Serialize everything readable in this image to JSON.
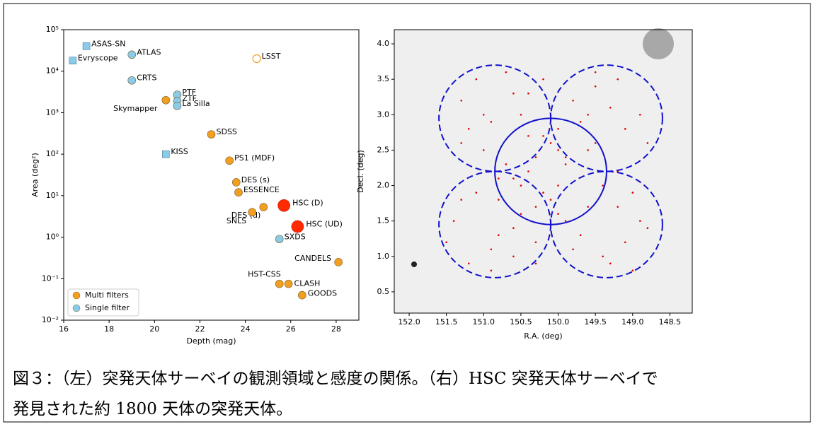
{
  "chart_data": [
    {
      "type": "scatter",
      "x_label": "Depth (mag)",
      "y_label": "Area (deg²)",
      "xlim": [
        16,
        29
      ],
      "xticks": [
        16,
        18,
        20,
        22,
        24,
        26,
        28
      ],
      "ylim": [
        0.01,
        100000
      ],
      "log_y": true,
      "yticks": [
        {
          "value": 0.01,
          "label": "10⁻²"
        },
        {
          "value": 0.1,
          "label": "10⁻¹"
        },
        {
          "value": 1,
          "label": "10⁰"
        },
        {
          "value": 10,
          "label": "10¹"
        },
        {
          "value": 100,
          "label": "10²"
        },
        {
          "value": 1000,
          "label": "10³"
        },
        {
          "value": 10000,
          "label": "10⁴"
        },
        {
          "value": 100000,
          "label": "10⁵"
        }
      ],
      "legend": [
        {
          "label": "Multi filters",
          "color": "#f29f1f"
        },
        {
          "label": "Single filter",
          "color": "#89cbe8"
        }
      ],
      "points": [
        {
          "name": "ASAS-SN",
          "x": 17,
          "y": 40000,
          "marker": "square",
          "color": "#89cbe8"
        },
        {
          "name": "Evryscope",
          "x": 16.4,
          "y": 18000,
          "marker": "square",
          "color": "#89cbe8"
        },
        {
          "name": "ATLAS",
          "x": 19,
          "y": 25000,
          "marker": "circle",
          "color": "#89cbe8"
        },
        {
          "name": "LSST",
          "x": 24.5,
          "y": 20000,
          "marker": "hollow",
          "color": "#f29f1f"
        },
        {
          "name": "CRTS",
          "x": 19,
          "y": 6000,
          "marker": "circle",
          "color": "#89cbe8"
        },
        {
          "name": "PTF",
          "x": 21,
          "y": 2700,
          "marker": "circle",
          "color": "#89cbe8"
        },
        {
          "name": "ZTF",
          "x": 21,
          "y": 1900,
          "marker": "circle",
          "color": "#89cbe8"
        },
        {
          "name": "La Silla",
          "x": 21,
          "y": 1450,
          "marker": "circle",
          "color": "#89cbe8"
        },
        {
          "name": "Skymapper",
          "x": 20.5,
          "y": 2000,
          "marker": "circle",
          "color": "#f29f1f"
        },
        {
          "name": "SDSS",
          "x": 22.5,
          "y": 300,
          "marker": "circle",
          "color": "#f29f1f"
        },
        {
          "name": "KISS",
          "x": 20.5,
          "y": 100,
          "marker": "square",
          "color": "#89cbe8"
        },
        {
          "name": "PS1 (MDF)",
          "x": 23.3,
          "y": 70,
          "marker": "circle",
          "color": "#f29f1f"
        },
        {
          "name": "DES (s)",
          "x": 23.6,
          "y": 21,
          "marker": "circle",
          "color": "#f29f1f"
        },
        {
          "name": "ESSENCE",
          "x": 23.7,
          "y": 12,
          "marker": "circle",
          "color": "#f29f1f"
        },
        {
          "name": "HSC (D)",
          "x": 25.7,
          "y": 5.8,
          "marker": "big",
          "color": "#ff2a00"
        },
        {
          "name": "DES (d)",
          "x": 24.8,
          "y": 5.3,
          "marker": "circle",
          "color": "#f29f1f"
        },
        {
          "name": "SNLS",
          "x": 24.3,
          "y": 4,
          "marker": "circle",
          "color": "#f29f1f"
        },
        {
          "name": "HSC (UD)",
          "x": 26.3,
          "y": 1.8,
          "marker": "big",
          "color": "#ff2a00"
        },
        {
          "name": "SXDS",
          "x": 25.5,
          "y": 0.9,
          "marker": "circle",
          "color": "#89cbe8"
        },
        {
          "name": "CANDELS",
          "x": 28.1,
          "y": 0.25,
          "marker": "circle",
          "color": "#f29f1f"
        },
        {
          "name": "HST-CSS",
          "x": 25.5,
          "y": 0.075,
          "marker": "circle",
          "color": "#f29f1f"
        },
        {
          "name": "CLASH",
          "x": 25.9,
          "y": 0.075,
          "marker": "circle",
          "color": "#f29f1f"
        },
        {
          "name": "GOODS",
          "x": 26.5,
          "y": 0.04,
          "marker": "circle",
          "color": "#f29f1f"
        }
      ]
    },
    {
      "type": "sky",
      "x_label": "R.A. (deg)",
      "y_label": "Decl. (deg)",
      "xlim": [
        152.2,
        148.2
      ],
      "ylim": [
        0.2,
        4.2
      ],
      "xticks": [
        {
          "value": 152,
          "label": "152.0"
        },
        151.5,
        {
          "value": 151,
          "label": "151.0"
        },
        150.5,
        {
          "value": 150,
          "label": "150.0"
        },
        149.5,
        {
          "value": 149,
          "label": "149.0"
        },
        148.5
      ],
      "yticks": [
        0.5,
        {
          "value": 1,
          "label": "1.0"
        },
        1.5,
        {
          "value": 2,
          "label": "2.0"
        },
        2.5,
        {
          "value": 3,
          "label": "3.0"
        },
        3.5,
        {
          "value": 4,
          "label": "4.0"
        }
      ],
      "circles": [
        {
          "ra": 150.1,
          "dec": 2.2,
          "r": 0.75,
          "dashed": false
        },
        {
          "ra": 150.85,
          "dec": 2.95,
          "r": 0.75,
          "dashed": true
        },
        {
          "ra": 149.35,
          "dec": 2.95,
          "r": 0.75,
          "dashed": true
        },
        {
          "ra": 150.85,
          "dec": 1.45,
          "r": 0.75,
          "dashed": true
        },
        {
          "ra": 149.35,
          "dec": 1.45,
          "r": 0.75,
          "dashed": true
        }
      ],
      "circle_color": "#1010cc",
      "point_color": "#e00000",
      "points": {
        "x": [
          151.3,
          151.1,
          150.9,
          150.6,
          150.4,
          151.0,
          150.7,
          151.2,
          150.5,
          150.3,
          150.1,
          149.9,
          149.7,
          149.5,
          149.3,
          149.1,
          148.9,
          148.8,
          149.2,
          149.6,
          150.0,
          150.2,
          150.4,
          150.6,
          150.8,
          151.4,
          151.5,
          151.2,
          150.9,
          150.6,
          150.3,
          150.0,
          149.7,
          149.4,
          149.1,
          148.9,
          149.0,
          149.3,
          149.6,
          149.9,
          150.2,
          150.5,
          150.8,
          151.1,
          151.3,
          150.9,
          150.6,
          150.3,
          150.0,
          149.8,
          149.5,
          149.2,
          149.0,
          148.8,
          149.4,
          149.8,
          150.1,
          150.4,
          150.7,
          151.0,
          151.3,
          150.8,
          150.2,
          149.6,
          149.2,
          150.0,
          150.5,
          149.9,
          149.5,
          150.3
        ],
        "y": [
          3.2,
          3.5,
          2.9,
          3.3,
          2.7,
          2.5,
          3.6,
          2.8,
          3.0,
          2.4,
          2.6,
          2.3,
          2.9,
          3.4,
          3.1,
          2.8,
          3.0,
          2.6,
          3.5,
          2.5,
          2.0,
          1.9,
          2.2,
          2.1,
          1.8,
          1.5,
          1.2,
          0.9,
          1.1,
          1.4,
          1.7,
          1.6,
          1.3,
          1.0,
          1.2,
          1.5,
          0.8,
          0.9,
          1.7,
          2.4,
          2.7,
          1.6,
          1.3,
          1.9,
          2.6,
          0.8,
          1.0,
          1.2,
          2.8,
          3.2,
          3.6,
          2.2,
          1.9,
          1.4,
          2.0,
          1.1,
          1.8,
          3.3,
          2.3,
          3.0,
          1.8,
          2.1,
          3.5,
          3.0,
          1.7,
          2.5,
          2.0,
          1.5,
          2.6,
          0.9
        ]
      }
    }
  ],
  "caption": [
    "図３：（左）突発天体サーベイの観測領域と感度の関係。（右）HSC 突発天体サーベイで",
    "発見された約 1800 天体の突発天体。"
  ]
}
